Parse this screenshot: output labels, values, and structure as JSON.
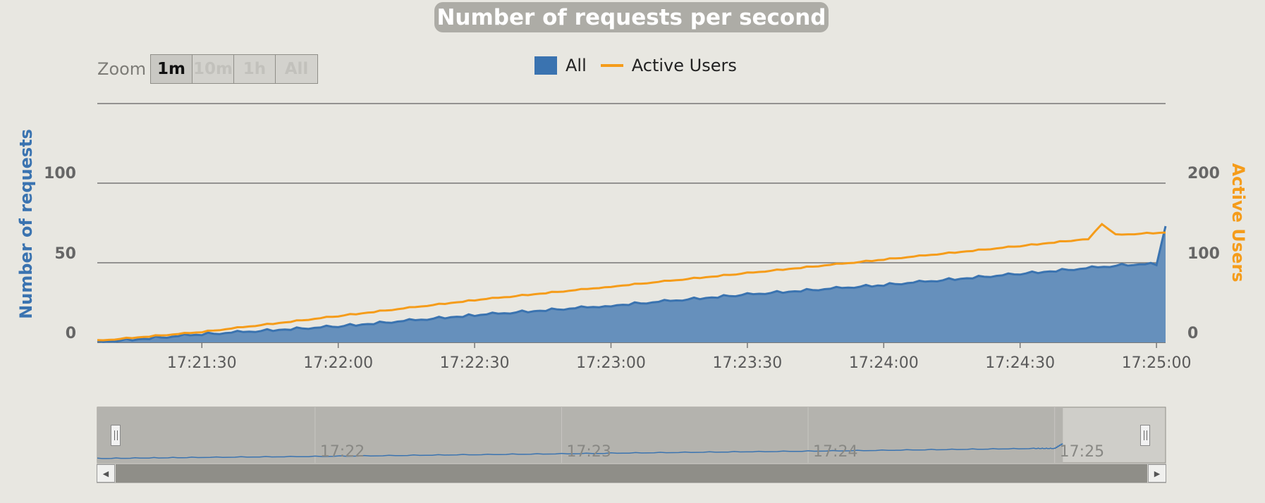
{
  "colors": {
    "requests": "#3a73b0",
    "requests_fill": "#6690bc",
    "active_users": "#f59c1a",
    "background": "#e8e7e1",
    "gridline": "#777777"
  },
  "zoom": {
    "label": "Zoom",
    "buttons": [
      {
        "label": "1m",
        "active": true
      },
      {
        "label": "10m",
        "active": false
      },
      {
        "label": "1h",
        "active": false
      },
      {
        "label": "All",
        "active": false
      }
    ]
  },
  "chart_data": {
    "type": "area",
    "title": "Number of requests per second",
    "legend": [
      "All",
      "Active Users"
    ],
    "legend_position": "top-center",
    "x_range": [
      "17:21:07",
      "17:25:02"
    ],
    "x_ticks": [
      "17:21:30",
      "17:22:00",
      "17:22:30",
      "17:23:00",
      "17:23:30",
      "17:24:00",
      "17:24:30",
      "17:25:00"
    ],
    "y_left": {
      "label": "Number of requests",
      "range": [
        0,
        150
      ],
      "ticks": [
        0,
        50,
        100
      ]
    },
    "y_right": {
      "label": "Active Users",
      "range": [
        0,
        300
      ],
      "ticks": [
        0,
        100,
        200
      ]
    },
    "grid": true,
    "series": [
      {
        "name": "All",
        "type": "area",
        "axis": "left",
        "points": [
          [
            "17:21:07",
            0
          ],
          [
            "17:21:30",
            5
          ],
          [
            "17:22:00",
            10
          ],
          [
            "17:22:30",
            17
          ],
          [
            "17:23:00",
            23
          ],
          [
            "17:23:30",
            30
          ],
          [
            "17:24:00",
            36
          ],
          [
            "17:24:30",
            43
          ],
          [
            "17:24:55",
            49
          ],
          [
            "17:25:00",
            49
          ],
          [
            "17:25:02",
            73
          ]
        ]
      },
      {
        "name": "Active Users",
        "type": "line",
        "axis": "right",
        "points": [
          [
            "17:21:07",
            2
          ],
          [
            "17:21:30",
            13
          ],
          [
            "17:22:00",
            33
          ],
          [
            "17:22:30",
            53
          ],
          [
            "17:23:00",
            70
          ],
          [
            "17:23:30",
            87
          ],
          [
            "17:24:00",
            104
          ],
          [
            "17:24:30",
            121
          ],
          [
            "17:24:45",
            130
          ],
          [
            "17:24:48",
            149
          ],
          [
            "17:24:51",
            135
          ],
          [
            "17:25:02",
            138
          ]
        ]
      }
    ]
  },
  "navigator": {
    "ticks": [
      "17:22",
      "17:23",
      "17:24",
      "17:25"
    ],
    "tick_times": [
      "17:22:00",
      "17:23:00",
      "17:24:00",
      "17:25:00"
    ],
    "range": [
      "17:21:07",
      "17:25:27"
    ],
    "selection": [
      "17:21:07",
      "17:25:02"
    ]
  }
}
